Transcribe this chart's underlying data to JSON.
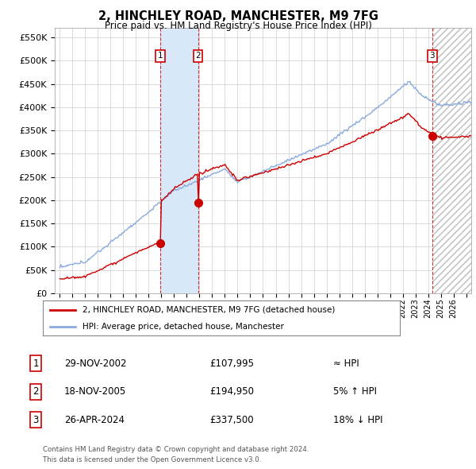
{
  "title": "2, HINCHLEY ROAD, MANCHESTER, M9 7FG",
  "subtitle": "Price paid vs. HM Land Registry's House Price Index (HPI)",
  "ylabel_ticks": [
    "£0",
    "£50K",
    "£100K",
    "£150K",
    "£200K",
    "£250K",
    "£300K",
    "£350K",
    "£400K",
    "£450K",
    "£500K",
    "£550K"
  ],
  "ylabel_values": [
    0,
    50000,
    100000,
    150000,
    200000,
    250000,
    300000,
    350000,
    400000,
    450000,
    500000,
    550000
  ],
  "ylim": [
    0,
    570000
  ],
  "xlim_start": 1994.6,
  "xlim_end": 2027.4,
  "color_line_hpi": "#88aadd",
  "color_line_price": "#cc0000",
  "legend_label1": "2, HINCHLEY ROAD, MANCHESTER, M9 7FG (detached house)",
  "legend_label2": "HPI: Average price, detached house, Manchester",
  "transactions": [
    {
      "num": 1,
      "date": "29-NOV-2002",
      "price": 107995,
      "year": 2002.91,
      "hpi_diff": "≈ HPI"
    },
    {
      "num": 2,
      "date": "18-NOV-2005",
      "price": 194950,
      "year": 2005.88,
      "hpi_diff": "5% ↑ HPI"
    },
    {
      "num": 3,
      "date": "26-APR-2024",
      "price": 337500,
      "year": 2024.32,
      "hpi_diff": "18% ↓ HPI"
    }
  ],
  "footnote1": "Contains HM Land Registry data © Crown copyright and database right 2024.",
  "footnote2": "This data is licensed under the Open Government Licence v3.0.",
  "background_chart": "#ffffff",
  "shading_color": "#d8e8f8",
  "hatch_color": "#bbbbbb",
  "t1_year": 2002.91,
  "t2_year": 2005.88,
  "t3_year": 2024.32
}
